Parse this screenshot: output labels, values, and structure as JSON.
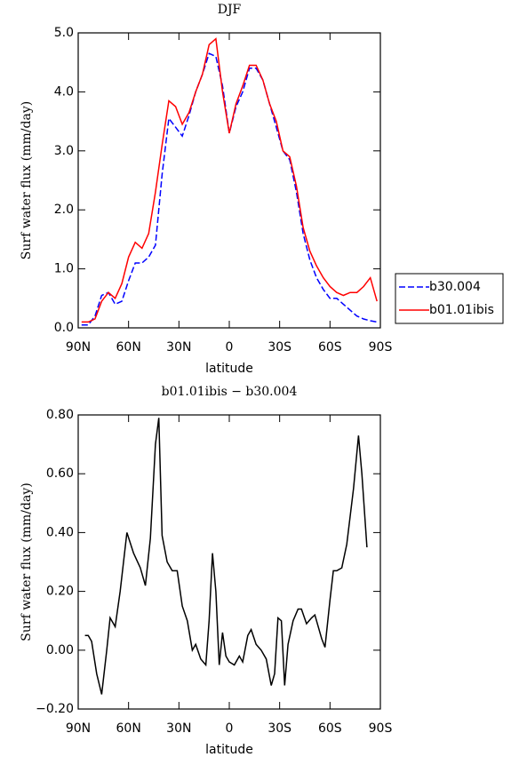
{
  "chart_data": [
    {
      "type": "line",
      "title": "DJF",
      "x_label": "latitude",
      "y_label": "Surf water flux (mm/day)",
      "x": [
        88,
        84,
        80,
        76,
        72,
        68,
        64,
        60,
        56,
        52,
        48,
        44,
        40,
        36,
        32,
        28,
        24,
        20,
        16,
        12,
        8,
        4,
        0,
        -4,
        -8,
        -12,
        -16,
        -20,
        -24,
        -28,
        -32,
        -36,
        -40,
        -44,
        -48,
        -52,
        -56,
        -60,
        -64,
        -68,
        -72,
        -76,
        -80,
        -84,
        -88
      ],
      "series": [
        {
          "name": "b30.004",
          "color": "#0000ff",
          "dash": true,
          "values": [
            0.05,
            0.05,
            0.2,
            0.55,
            0.6,
            0.4,
            0.45,
            0.8,
            1.1,
            1.1,
            1.2,
            1.4,
            2.6,
            3.55,
            3.4,
            3.25,
            3.6,
            4.0,
            4.3,
            4.65,
            4.6,
            4.1,
            3.3,
            3.75,
            4.0,
            4.4,
            4.4,
            4.2,
            3.8,
            3.4,
            3.0,
            2.85,
            2.3,
            1.6,
            1.15,
            0.85,
            0.65,
            0.5,
            0.5,
            0.4,
            0.3,
            0.2,
            0.15,
            0.12,
            0.1
          ]
        },
        {
          "name": "b01.01ibis",
          "color": "#ff0000",
          "dash": false,
          "values": [
            0.1,
            0.1,
            0.15,
            0.45,
            0.6,
            0.5,
            0.75,
            1.2,
            1.45,
            1.35,
            1.6,
            2.3,
            3.1,
            3.85,
            3.75,
            3.45,
            3.65,
            4.0,
            4.3,
            4.8,
            4.9,
            4.0,
            3.3,
            3.8,
            4.1,
            4.45,
            4.45,
            4.2,
            3.8,
            3.5,
            3.0,
            2.9,
            2.4,
            1.7,
            1.3,
            1.05,
            0.85,
            0.7,
            0.6,
            0.55,
            0.6,
            0.6,
            0.7,
            0.85,
            0.45
          ]
        }
      ],
      "xlim": [
        90,
        -90
      ],
      "xticks": [
        {
          "value": 90,
          "label": "90N"
        },
        {
          "value": 60,
          "label": "60N"
        },
        {
          "value": 30,
          "label": "30N"
        },
        0,
        {
          "value": -30,
          "label": "30S"
        },
        {
          "value": -60,
          "label": "60S"
        },
        {
          "value": -90,
          "label": "90S"
        }
      ],
      "ylim": [
        0,
        5
      ],
      "yticks": [
        {
          "value": 0,
          "label": "0.0"
        },
        {
          "value": 1,
          "label": "1.0"
        },
        {
          "value": 2,
          "label": "2.0"
        },
        {
          "value": 3,
          "label": "3.0"
        },
        {
          "value": 4,
          "label": "4.0"
        },
        {
          "value": 5,
          "label": "5.0"
        }
      ],
      "legend": "right"
    },
    {
      "type": "line",
      "title": "b01.01ibis − b30.004",
      "x_label": "latitude",
      "y_label": "Surf water flux (mm/day)",
      "x": [
        86,
        84,
        82,
        79,
        76,
        73,
        71,
        68,
        65,
        61,
        57,
        53,
        50,
        47,
        44,
        42,
        40,
        37,
        34,
        31,
        28,
        25,
        22,
        20,
        17,
        14,
        12,
        10,
        8,
        6,
        4,
        2,
        0,
        -3,
        -6,
        -8,
        -11,
        -13,
        -16,
        -19,
        -22,
        -25,
        -27,
        -29,
        -31,
        -33,
        -35,
        -38,
        -41,
        -43,
        -46,
        -49,
        -51,
        -55,
        -57,
        -60,
        -62,
        -64,
        -67,
        -70,
        -74,
        -77,
        -79,
        -82
      ],
      "series": [
        {
          "name": "diff",
          "color": "#000000",
          "dash": false,
          "values": [
            0.05,
            0.05,
            0.03,
            -0.08,
            -0.15,
            0.0,
            0.11,
            0.08,
            0.2,
            0.4,
            0.33,
            0.28,
            0.22,
            0.38,
            0.7,
            0.79,
            0.39,
            0.3,
            0.27,
            0.27,
            0.15,
            0.1,
            0.0,
            0.02,
            -0.03,
            -0.05,
            0.1,
            0.33,
            0.2,
            -0.05,
            0.06,
            -0.02,
            -0.04,
            -0.05,
            -0.02,
            -0.04,
            0.05,
            0.07,
            0.02,
            0.0,
            -0.03,
            -0.12,
            -0.08,
            0.11,
            0.1,
            -0.12,
            0.02,
            0.1,
            0.14,
            0.14,
            0.09,
            0.11,
            0.12,
            0.04,
            0.01,
            0.17,
            0.27,
            0.27,
            0.28,
            0.36,
            0.55,
            0.73,
            0.6,
            0.35
          ]
        }
      ],
      "xlim": [
        90,
        -90
      ],
      "xticks": [
        {
          "value": 90,
          "label": "90N"
        },
        {
          "value": 60,
          "label": "60N"
        },
        {
          "value": 30,
          "label": "30N"
        },
        0,
        {
          "value": -30,
          "label": "30S"
        },
        {
          "value": -60,
          "label": "60S"
        },
        {
          "value": -90,
          "label": "90S"
        }
      ],
      "ylim": [
        -0.2,
        0.8
      ],
      "yticks": [
        {
          "value": -0.2,
          "label": "−0.20"
        },
        {
          "value": 0,
          "label": "0.00"
        },
        {
          "value": 0.2,
          "label": "0.20"
        },
        {
          "value": 0.4,
          "label": "0.40"
        },
        {
          "value": 0.6,
          "label": "0.60"
        },
        {
          "value": 0.8,
          "label": "0.80"
        }
      ]
    }
  ]
}
